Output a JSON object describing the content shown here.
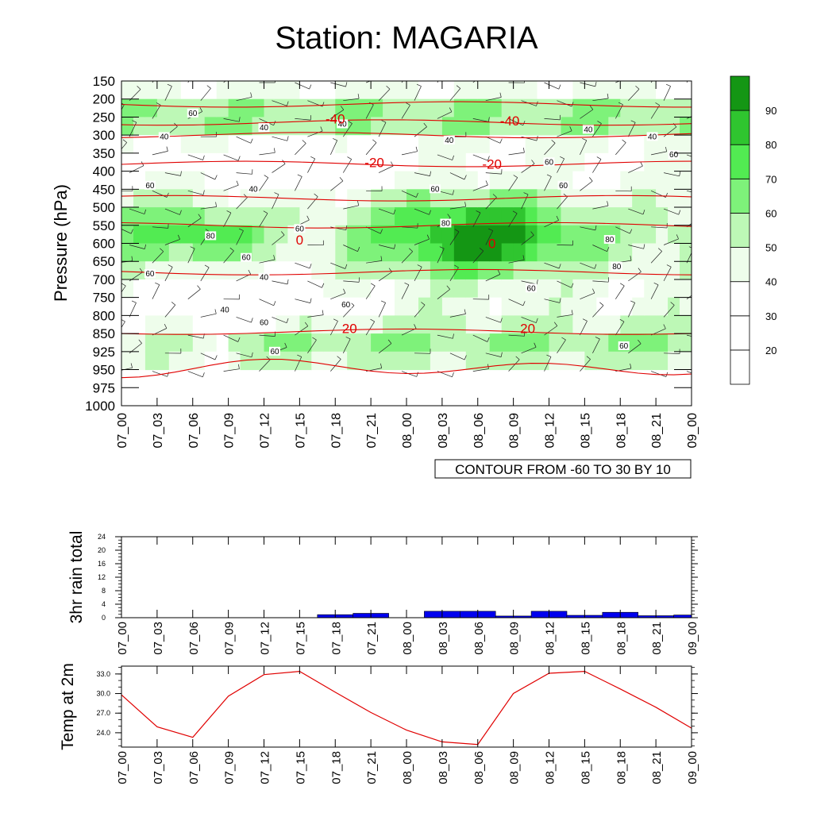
{
  "title": "Station: MAGARIA",
  "chart_data": [
    {
      "type": "heatmap",
      "name": "relative-humidity-cross-section",
      "ylabel": "Pressure (hPa)",
      "pressure_levels": [
        150,
        200,
        250,
        300,
        350,
        400,
        450,
        500,
        550,
        600,
        650,
        700,
        750,
        800,
        850,
        925,
        950,
        975,
        1000
      ],
      "time_labels": [
        "07_00",
        "07_03",
        "07_06",
        "07_09",
        "07_12",
        "07_15",
        "07_18",
        "07_21",
        "08_00",
        "08_03",
        "08_06",
        "08_09",
        "08_12",
        "08_15",
        "08_18",
        "08_21",
        "09_00"
      ],
      "colorbar": {
        "levels": [
          20,
          30,
          40,
          50,
          60,
          70,
          80,
          90
        ],
        "colors": [
          "#ffffff",
          "#ffffff",
          "#ffffff",
          "#eefdeb",
          "#bdf8b6",
          "#7ef27a",
          "#52eb52",
          "#2fc52f",
          "#149614"
        ]
      },
      "rh_contour_labels": [
        "40",
        "60",
        "80"
      ],
      "temperature_contour_labels": [
        "-40",
        "-20",
        "0",
        "20"
      ],
      "temperature_contour_color": "#e00000",
      "info_box": "CONTOUR FROM -60 TO 30 BY 10"
    },
    {
      "type": "bar",
      "name": "3hr-rain-total",
      "ylabel": "3hr rain total",
      "yticks": [
        0,
        4,
        8,
        12,
        16,
        20,
        24
      ],
      "ylim": [
        0,
        24
      ],
      "x_labels": [
        "07_00",
        "07_03",
        "07_06",
        "07_09",
        "07_12",
        "07_15",
        "07_18",
        "07_21",
        "08_00",
        "08_03",
        "08_06",
        "08_09",
        "08_12",
        "08_15",
        "08_18",
        "08_21",
        "09_00"
      ],
      "bars": [
        {
          "start": 5.5,
          "end": 6.5,
          "value": 0.9
        },
        {
          "start": 6.5,
          "end": 7.5,
          "value": 1.3
        },
        {
          "start": 8.5,
          "end": 9.5,
          "value": 1.9
        },
        {
          "start": 9.5,
          "end": 10.5,
          "value": 1.9
        },
        {
          "start": 10.5,
          "end": 11.5,
          "value": 0.5
        },
        {
          "start": 11.5,
          "end": 12.5,
          "value": 1.9
        },
        {
          "start": 12.5,
          "end": 13.5,
          "value": 0.7
        },
        {
          "start": 13.5,
          "end": 14.5,
          "value": 1.6
        },
        {
          "start": 14.5,
          "end": 15.5,
          "value": 0.6
        },
        {
          "start": 15.5,
          "end": 16.0,
          "value": 0.8
        }
      ],
      "bar_color": "#0000ee"
    },
    {
      "type": "line",
      "name": "temp-at-2m",
      "ylabel": "Temp at 2m",
      "yticks": [
        "24.0",
        "27.0",
        "30.0",
        "33.0"
      ],
      "ylim": [
        21.8,
        34.2
      ],
      "x_labels": [
        "07_00",
        "07_03",
        "07_06",
        "07_09",
        "07_12",
        "07_15",
        "07_18",
        "07_21",
        "08_00",
        "08_03",
        "08_06",
        "08_09",
        "08_12",
        "08_15",
        "08_18",
        "08_21",
        "09_00"
      ],
      "x": [
        0,
        1,
        2,
        3,
        4,
        5,
        6,
        7,
        8,
        9,
        10,
        11,
        12,
        13,
        14,
        15,
        16
      ],
      "values": [
        29.8,
        24.9,
        23.3,
        29.6,
        32.9,
        33.4,
        30.2,
        27.1,
        24.4,
        22.6,
        22.2,
        30.0,
        33.1,
        33.4,
        30.7,
        27.9,
        24.7
      ],
      "line_color": "#e00000"
    }
  ]
}
